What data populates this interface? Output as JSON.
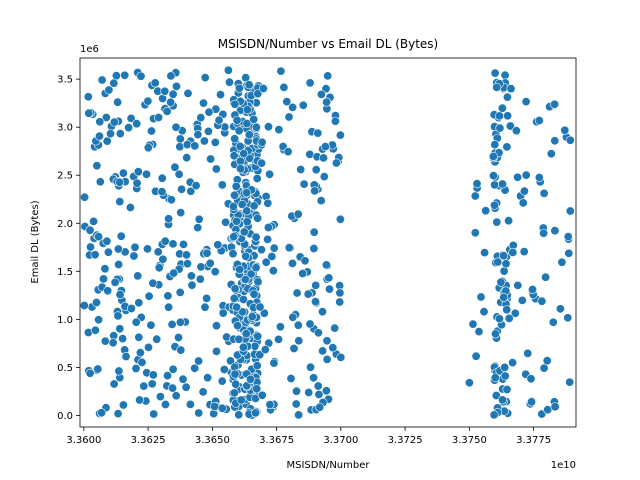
{
  "chart_data": {
    "type": "scatter",
    "title": "MSISDN/Number vs Email DL (Bytes)",
    "xlabel": "MSISDN/Number",
    "ylabel": "Email DL (Bytes)",
    "x_offset_label": "1e10",
    "y_offset_label": "1e6",
    "xlim": [
      3.35985,
      3.37915
    ],
    "ylim": [
      -0.12,
      3.72
    ],
    "x_ticks": [
      3.36,
      3.3625,
      3.365,
      3.3675,
      3.37,
      3.3725,
      3.375,
      3.3775
    ],
    "x_tick_labels": [
      "3.3600",
      "3.3625",
      "3.3650",
      "3.3675",
      "3.3700",
      "3.3725",
      "3.3750",
      "3.3775"
    ],
    "y_ticks": [
      0.0,
      0.5,
      1.0,
      1.5,
      2.0,
      2.5,
      3.0,
      3.5
    ],
    "y_tick_labels": [
      "0.0",
      "0.5",
      "1.0",
      "1.5",
      "2.0",
      "2.5",
      "3.0",
      "3.5"
    ],
    "grid": false,
    "colors": {
      "marker": "#1f77b4",
      "marker_edge": "#ffffff"
    },
    "clusters": [
      {
        "x_range": [
          3.36,
          3.362
        ],
        "y_range": [
          0.0,
          3.55
        ],
        "count": 100
      },
      {
        "x_range": [
          3.362,
          3.3642
        ],
        "y_range": [
          0.0,
          3.6
        ],
        "count": 110
      },
      {
        "x_range": [
          3.3642,
          3.3658
        ],
        "y_range": [
          0.0,
          3.6
        ],
        "count": 70
      },
      {
        "x_range": [
          3.3658,
          3.3668
        ],
        "y_range": [
          0.0,
          3.55
        ],
        "count": 320
      },
      {
        "x_range": [
          3.3668,
          3.37
        ],
        "y_range": [
          0.0,
          3.6
        ],
        "count": 130
      },
      {
        "x_range": [
          3.375,
          3.3758
        ],
        "y_range": [
          0.3,
          2.6
        ],
        "count": 12
      },
      {
        "x_range": [
          3.3759,
          3.3765
        ],
        "y_range": [
          0.0,
          3.58
        ],
        "count": 90
      },
      {
        "x_range": [
          3.3765,
          3.379
        ],
        "y_range": [
          0.0,
          3.45
        ],
        "count": 60
      }
    ]
  }
}
